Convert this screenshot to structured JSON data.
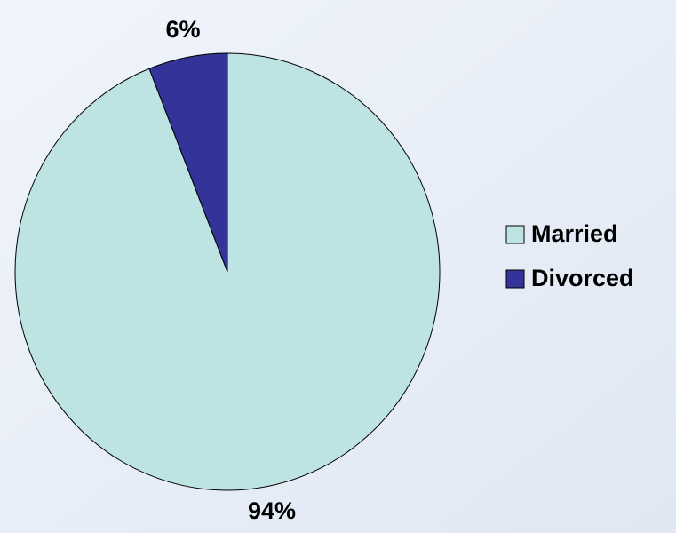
{
  "chart_data": {
    "type": "pie",
    "categories": [
      "Married",
      "Divorced"
    ],
    "values": [
      94,
      6
    ],
    "value_labels": [
      "94%",
      "6%"
    ],
    "colors": [
      "#bde3e3",
      "#333399"
    ],
    "legend": "right"
  }
}
